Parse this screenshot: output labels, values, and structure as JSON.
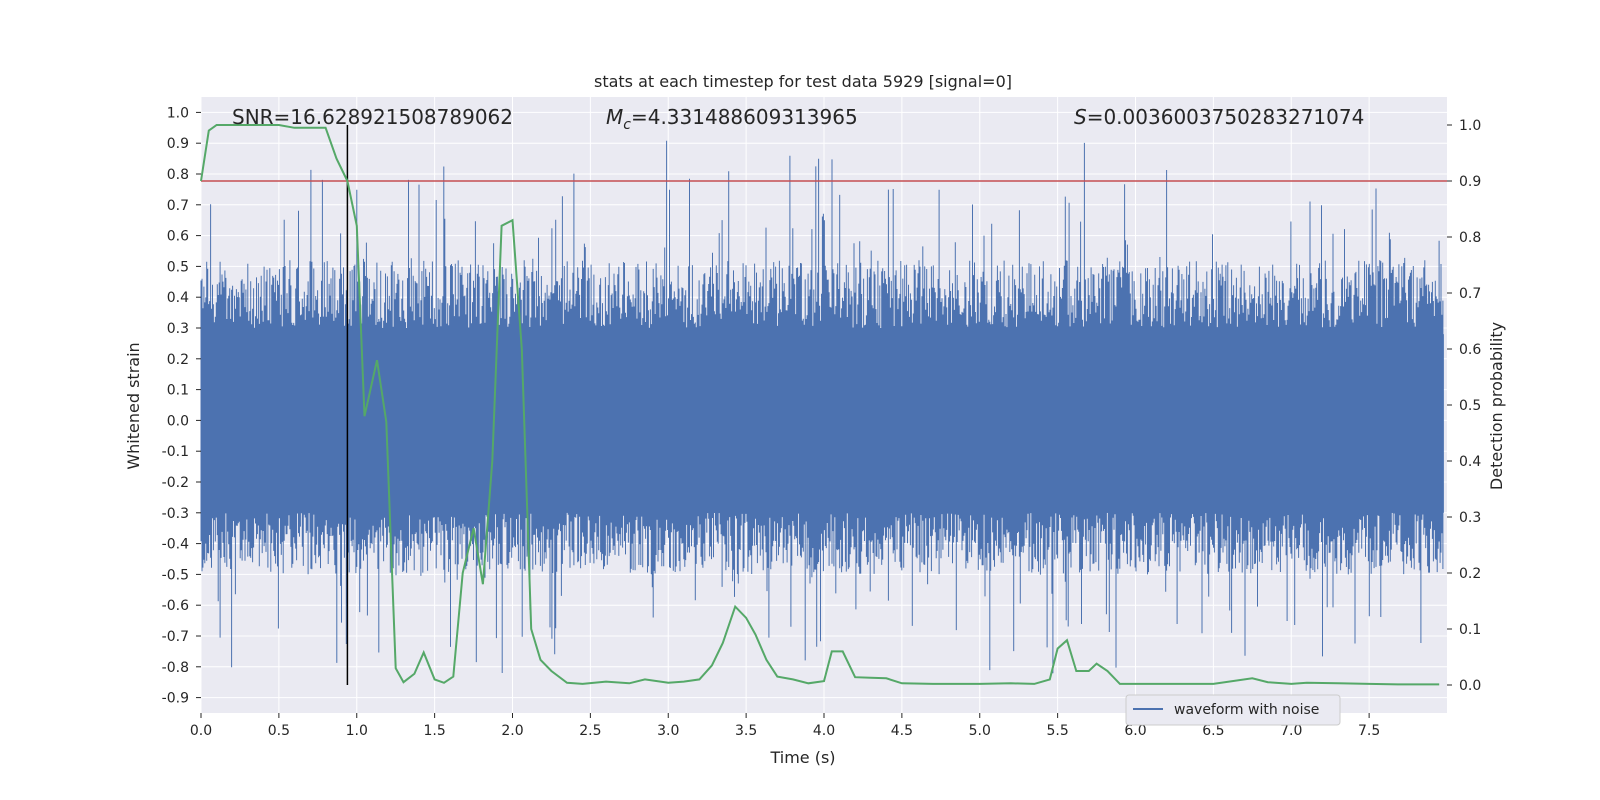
{
  "chart_data": {
    "type": "line",
    "title": "stats at each timestep for test data 5929 [signal=0]",
    "xlabel": "Time (s)",
    "ylabel_left": "Whitened strain",
    "ylabel_right": "Detection probability",
    "xlim": [
      0,
      8
    ],
    "ylim_left": [
      -0.95,
      1.05
    ],
    "ylim_right": [
      -0.05,
      1.05
    ],
    "x_ticks": [
      "0.0",
      "0.5",
      "1.0",
      "1.5",
      "2.0",
      "2.5",
      "3.0",
      "3.5",
      "4.0",
      "4.5",
      "5.0",
      "5.5",
      "6.0",
      "6.5",
      "7.0",
      "7.5"
    ],
    "y_left_ticks": [
      "-0.9",
      "-0.8",
      "-0.7",
      "-0.6",
      "-0.5",
      "-0.4",
      "-0.3",
      "-0.2",
      "-0.1",
      "0.0",
      "0.1",
      "0.2",
      "0.3",
      "0.4",
      "0.5",
      "0.6",
      "0.7",
      "0.8",
      "0.9",
      "1.0"
    ],
    "y_right_ticks": [
      "0.0",
      "0.1",
      "0.2",
      "0.3",
      "0.4",
      "0.5",
      "0.6",
      "0.7",
      "0.8",
      "0.9",
      "1.0"
    ],
    "grid": true,
    "legend_position": "lower-right",
    "annotations": {
      "snr": "SNR=16.628921508789062",
      "mc_symbol": "M",
      "mc_sub": "c",
      "mc_value": "=4.331488609313965",
      "s_symbol": "S",
      "s_value": "=0.0036003750283271074"
    },
    "threshold_probability": 0.9,
    "marker_time": 0.94,
    "series": [
      {
        "name": "waveform with noise",
        "axis": "left",
        "color": "#4c72b0",
        "description_note": "dense noise trace, envelope approx -0.85 to 1.0"
      },
      {
        "axis": "right",
        "color": "#55a868",
        "x": [
          0.0,
          0.05,
          0.1,
          0.2,
          0.3,
          0.4,
          0.5,
          0.6,
          0.7,
          0.8,
          0.87,
          0.94,
          1.0,
          1.05,
          1.13,
          1.19,
          1.25,
          1.3,
          1.37,
          1.43,
          1.5,
          1.56,
          1.62,
          1.68,
          1.75,
          1.81,
          1.87,
          1.93,
          2.0,
          2.06,
          2.12,
          2.18,
          2.25,
          2.35,
          2.45,
          2.6,
          2.75,
          2.85,
          3.0,
          3.1,
          3.2,
          3.28,
          3.35,
          3.43,
          3.5,
          3.56,
          3.63,
          3.7,
          3.8,
          3.9,
          4.0,
          4.05,
          4.12,
          4.2,
          4.3,
          4.4,
          4.5,
          4.7,
          5.0,
          5.2,
          5.35,
          5.45,
          5.5,
          5.56,
          5.62,
          5.7,
          5.75,
          5.82,
          5.9,
          6.0,
          6.2,
          6.5,
          6.75,
          6.85,
          7.0,
          7.1,
          7.3,
          7.5,
          7.7,
          7.95
        ],
        "y": [
          0.9,
          0.99,
          1.0,
          1.0,
          1.0,
          1.0,
          1.0,
          0.995,
          0.995,
          0.995,
          0.94,
          0.9,
          0.82,
          0.48,
          0.58,
          0.47,
          0.03,
          0.005,
          0.02,
          0.058,
          0.01,
          0.004,
          0.015,
          0.2,
          0.28,
          0.18,
          0.4,
          0.82,
          0.83,
          0.6,
          0.1,
          0.045,
          0.025,
          0.004,
          0.002,
          0.006,
          0.003,
          0.01,
          0.004,
          0.006,
          0.01,
          0.035,
          0.075,
          0.14,
          0.12,
          0.09,
          0.045,
          0.015,
          0.01,
          0.003,
          0.007,
          0.06,
          0.06,
          0.014,
          0.013,
          0.012,
          0.003,
          0.002,
          0.002,
          0.003,
          0.002,
          0.01,
          0.065,
          0.08,
          0.025,
          0.025,
          0.038,
          0.025,
          0.002,
          0.002,
          0.002,
          0.002,
          0.012,
          0.005,
          0.002,
          0.004,
          0.003,
          0.002,
          0.001,
          0.001
        ]
      }
    ]
  },
  "colors": {
    "plot_bg": "#eaeaf2",
    "grid": "#ffffff",
    "waveform": "#4c72b0",
    "probability": "#55a868",
    "threshold": "#c44e52",
    "marker": "#000000"
  }
}
